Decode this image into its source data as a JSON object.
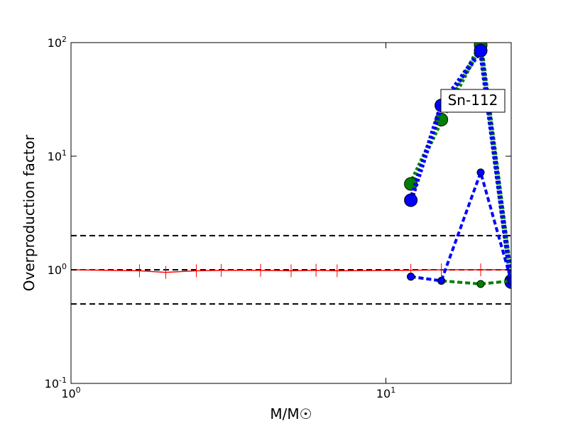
{
  "chart_data": {
    "type": "line",
    "xlabel": "M/M☉",
    "ylabel": "Overproduction factor",
    "xlog": true,
    "ylog": true,
    "xlim": [
      1,
      25
    ],
    "ylim": [
      0.1,
      100
    ],
    "xticks": [
      {
        "value": 1,
        "label": "10^0"
      },
      {
        "value": 10,
        "label": "10^1"
      }
    ],
    "yticks": [
      {
        "value": 0.1,
        "label": "10^-1"
      },
      {
        "value": 1,
        "label": "10^0"
      },
      {
        "value": 10,
        "label": "10^1"
      },
      {
        "value": 100,
        "label": "10^2"
      }
    ],
    "hlines": [
      0.5,
      1,
      2
    ],
    "hline_color": "#000000",
    "annotation": "Sn-112",
    "series": [
      {
        "color": "#ff0000",
        "style": "solid",
        "width": 1.5,
        "marker": "vline",
        "x": [
          1,
          1.65,
          2,
          2.5,
          3,
          4,
          5,
          6,
          7,
          12,
          15,
          20,
          25
        ],
        "values": [
          1,
          0.98,
          0.95,
          0.98,
          0.99,
          0.99,
          0.98,
          0.99,
          0.98,
          0.99,
          1,
          1,
          1
        ]
      },
      {
        "color": "#008000",
        "style": "dotted",
        "width": 7,
        "marker": "circle",
        "marker_size": 9,
        "x": [
          12,
          15,
          20,
          25
        ],
        "values": [
          5.7,
          21,
          95,
          0.8
        ]
      },
      {
        "color": "#0000ff",
        "style": "dotted",
        "width": 7,
        "marker": "circle",
        "marker_size": 9,
        "x": [
          12,
          15,
          20,
          25
        ],
        "values": [
          4.1,
          28,
          85,
          0.78
        ]
      },
      {
        "color": "#008000",
        "style": "dashed",
        "width": 4,
        "marker": "circle",
        "marker_size": 5,
        "x": [
          12,
          15,
          20,
          25
        ],
        "values": [
          0.87,
          0.8,
          0.75,
          0.8
        ]
      },
      {
        "color": "#0000ff",
        "style": "dashed",
        "width": 4,
        "marker": "circle",
        "marker_size": 5,
        "x": [
          12,
          15,
          20,
          25
        ],
        "values": [
          0.87,
          0.8,
          7.2,
          0.8
        ]
      }
    ]
  }
}
